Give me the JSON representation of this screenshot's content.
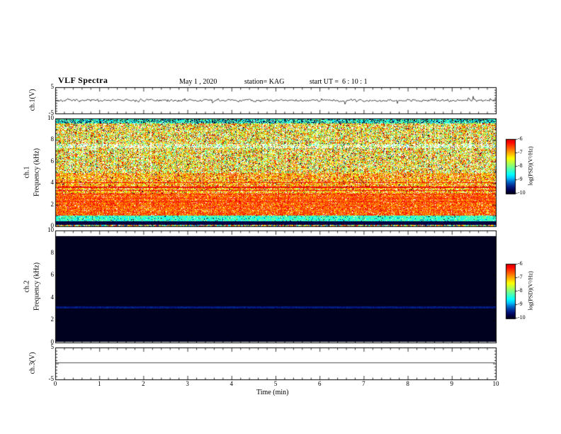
{
  "header": {
    "title": "VLF Spectra",
    "date": "May 1 , 2020",
    "station": "station= KAG",
    "start_ut": "start UT =  6 : 10 : 1"
  },
  "axes": {
    "time_label": "Time (min)",
    "x_ticks": [
      "0",
      "1",
      "2",
      "3",
      "4",
      "5",
      "6",
      "7",
      "8",
      "9",
      "10"
    ],
    "ch1_wave": {
      "label": "ch.1(V)",
      "ticks": [
        "5",
        "-5"
      ],
      "ylim": [
        -5,
        5
      ]
    },
    "ch1_spec": {
      "ch": "ch.1",
      "freq": "Frequency (kHz)",
      "ticks": [
        "10",
        "8",
        "6",
        "4",
        "2",
        "0"
      ],
      "ylim": [
        0,
        10
      ]
    },
    "ch2_spec": {
      "ch": "ch.2",
      "freq": "Frequency (kHz)",
      "ticks": [
        "10",
        "8",
        "6",
        "4",
        "2",
        "0"
      ],
      "ylim": [
        0,
        10
      ]
    },
    "ch3_wave": {
      "label": "ch.3(V)",
      "ticks": [
        "5",
        "-5"
      ],
      "ylim": [
        -5,
        5
      ]
    }
  },
  "colorbar": {
    "label": "log(PSD)(V²/Hz)",
    "ticks": [
      "-6",
      "-7",
      "-8",
      "-9",
      "-10"
    ],
    "zlim": [
      -10,
      -6
    ],
    "top_color": "#d10000",
    "bottom_color": "#00001f"
  },
  "chart_data": [
    {
      "type": "line",
      "name": "ch1_waveform",
      "ylabel": "ch.1(V)",
      "xlim": [
        0,
        10
      ],
      "ylim": [
        -5,
        5
      ],
      "noise_v": 0.5,
      "spike_v": 2.2,
      "description": "Dense noisy voltage trace fluctuating around 0 V, mostly within ±0.5 V with occasional spikes to about ±2 V over the full 10 minutes."
    },
    {
      "type": "heatmap",
      "name": "ch1_spectrogram",
      "xlabel": "Time (min)",
      "ylabel": "ch.1 Frequency (kHz)",
      "zlabel": "log(PSD)(V²/Hz)",
      "xlim": [
        0,
        10
      ],
      "ylim": [
        0,
        10
      ],
      "zlim": [
        -10,
        -6
      ],
      "bands": [
        {
          "f": [
            0,
            0.15
          ],
          "psd": -8.0,
          "spread": 1.8,
          "burst": 1.6,
          "gap": 0.05,
          "texture": "thin multicolor speckle strip at bottom edge"
        },
        {
          "f": [
            0.15,
            0.5
          ],
          "psd": -9.85,
          "spread": 0.12,
          "burst": 0.1,
          "gap": 0.0,
          "texture": "quiet near-black band"
        },
        {
          "f": [
            0.5,
            1.0
          ],
          "psd": -8.45,
          "spread": 0.4,
          "burst": 0.5,
          "gap": 0.02,
          "dark": 0.05,
          "texture": "green band"
        },
        {
          "f": [
            1.0,
            3.0
          ],
          "psd": -6.8,
          "spread": 0.5,
          "burst": 0.8,
          "gap": 0.05,
          "texture": "intense red/orange broadband noise"
        },
        {
          "f": [
            3.0,
            5.0
          ],
          "psd": -7.2,
          "spread": 0.8,
          "burst": 1.2,
          "gap": 0.12,
          "dark": 0.03,
          "texture": "red/yellow noise with persistent horizontal line emissions"
        },
        {
          "f": [
            5.0,
            9.6
          ],
          "psd": -7.7,
          "spread": 1.0,
          "burst": 2.0,
          "gap": 0.2,
          "dark": 0.06,
          "texture": "dense vertical red/yellow/green streaks with white gaps"
        },
        {
          "f": [
            7.25,
            7.65
          ],
          "psd": -7.9,
          "spread": 1.0,
          "burst": 1.6,
          "gap": 0.45,
          "dark": 0.04,
          "texture": "lighter whitish horizontal band"
        },
        {
          "f": [
            9.6,
            10.0
          ],
          "psd": -8.5,
          "spread": 0.5,
          "burst": 0.6,
          "gap": 0.04,
          "dark": 0.28,
          "texture": "dark green band with black speckle at top edge"
        }
      ],
      "lines": [
        {
          "f": 2.3,
          "psd": -6.35
        },
        {
          "f": 2.65,
          "psd": -6.45
        },
        {
          "f": 3.05,
          "psd": -6.3
        },
        {
          "f": 3.35,
          "psd": -6.2
        },
        {
          "f": 3.7,
          "psd": -6.15,
          "w": 2
        },
        {
          "f": 4.05,
          "psd": -6.3
        }
      ]
    },
    {
      "type": "heatmap",
      "name": "ch2_spectrogram",
      "xlabel": "Time (min)",
      "ylabel": "ch.2 Frequency (kHz)",
      "zlabel": "log(PSD)(V²/Hz)",
      "xlim": [
        0,
        10
      ],
      "ylim": [
        0,
        10
      ],
      "zlim": [
        -10,
        -6
      ],
      "bands": [
        {
          "f": [
            0.1,
            9.55
          ],
          "psd": -10.3,
          "spread": 0.08,
          "burst": 0,
          "gap": 0,
          "texture": "uniform black, no signal (below color scale)"
        },
        {
          "f": [
            3.1,
            3.28
          ],
          "psd": -9.55,
          "spread": 0.15,
          "burst": 0,
          "gap": 0,
          "texture": "very faint dark-blue horizontal line near 3.2 kHz"
        }
      ]
    },
    {
      "type": "line",
      "name": "ch3_waveform",
      "ylabel": "ch.3(V)",
      "xlim": [
        0,
        10
      ],
      "ylim": [
        -5,
        5
      ],
      "constant_v": 0.2,
      "description": "Flat constant line near 0 V across the entire record."
    }
  ]
}
